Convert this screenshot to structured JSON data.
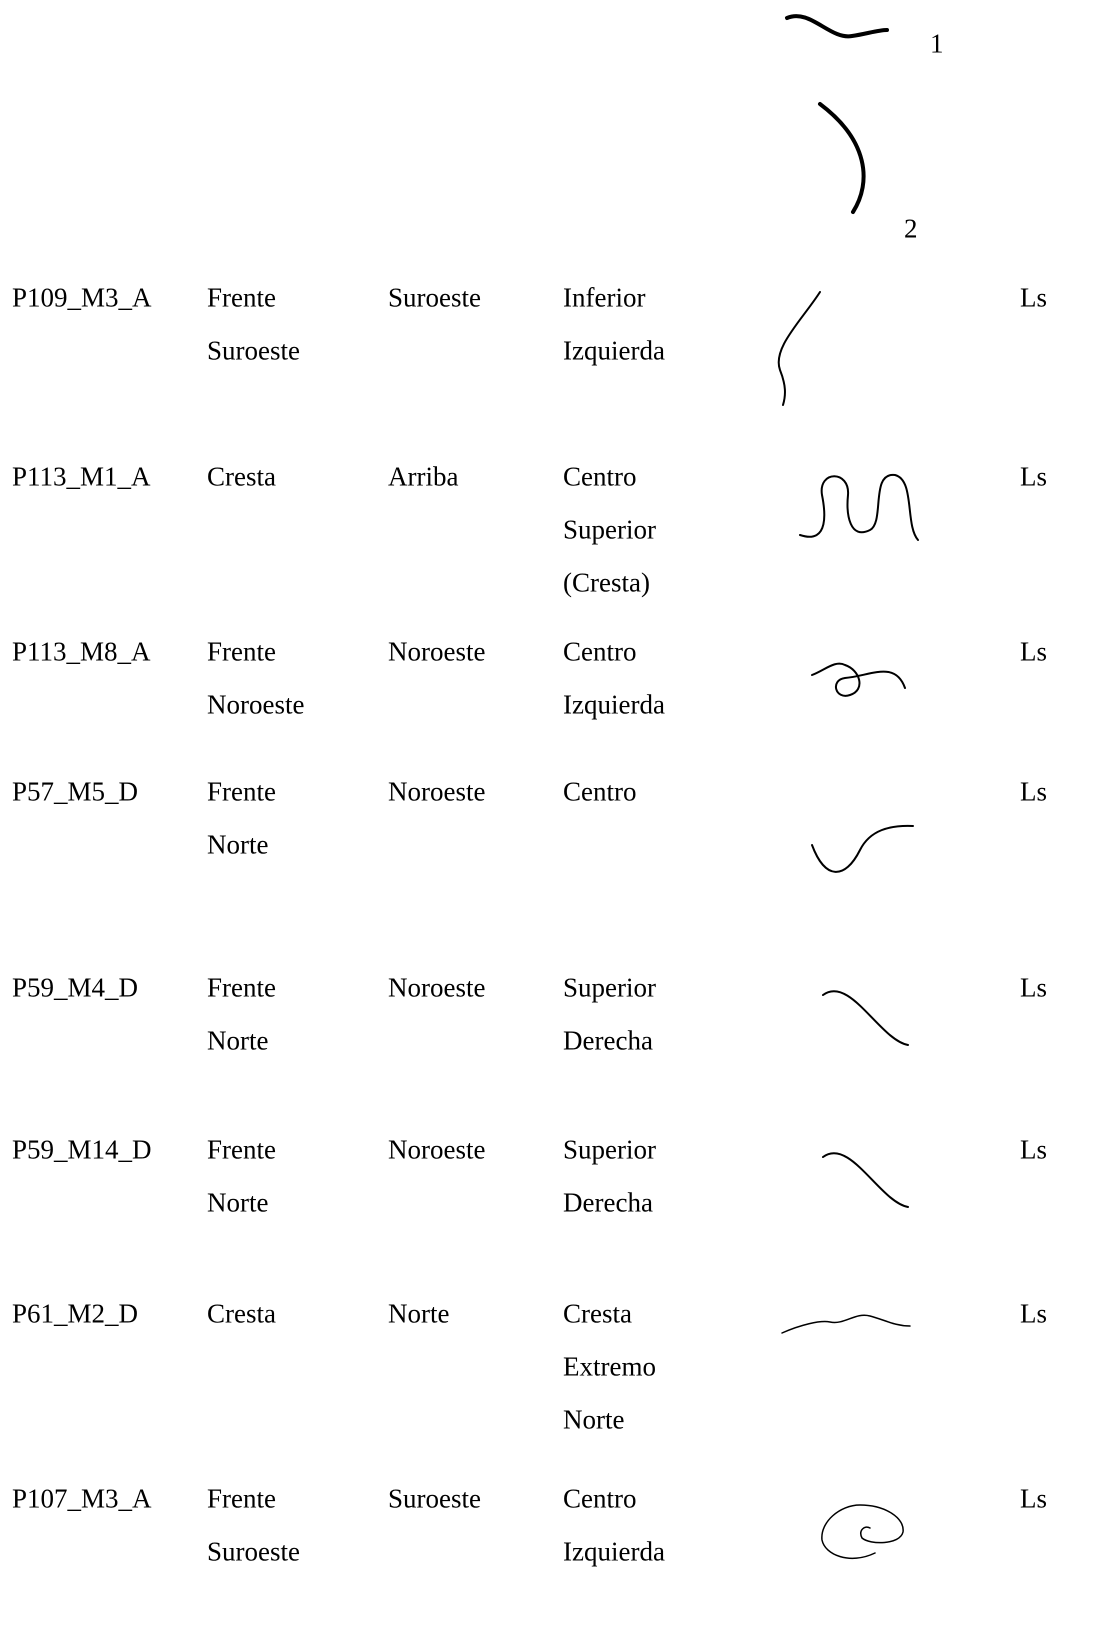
{
  "figure_labels": [
    "1",
    "2"
  ],
  "table": {
    "rows": [
      [
        "P109_M3_A",
        [
          "Frente",
          "Suroeste"
        ],
        [
          "Suroeste"
        ],
        [
          "Inferior",
          "Izquierda"
        ],
        "Ls"
      ],
      [
        "P113_M1_A",
        [
          "Cresta"
        ],
        [
          "Arriba"
        ],
        [
          "Centro",
          "Superior",
          "(Cresta)"
        ],
        "Ls"
      ],
      [
        "P113_M8_A",
        [
          "Frente",
          "Noroeste"
        ],
        [
          "Noroeste"
        ],
        [
          "Centro",
          "Izquierda"
        ],
        "Ls"
      ],
      [
        "P57_M5_D",
        [
          "Frente",
          "Norte"
        ],
        [
          "Noroeste"
        ],
        [
          "Centro"
        ],
        "Ls"
      ],
      [
        "P59_M4_D",
        [
          "Frente",
          "Norte"
        ],
        [
          "Noroeste"
        ],
        [
          "Superior",
          "Derecha"
        ],
        "Ls"
      ],
      [
        "P59_M14_D",
        [
          "Frente",
          "Norte"
        ],
        [
          "Noroeste"
        ],
        [
          "Superior",
          "Derecha"
        ],
        "Ls"
      ],
      [
        "P61_M2_D",
        [
          "Cresta"
        ],
        [
          "Norte"
        ],
        [
          "Cresta",
          "Extremo",
          "Norte"
        ],
        "Ls"
      ],
      [
        "P107_M3_A",
        [
          "Frente",
          "Suroeste"
        ],
        [
          "Suroeste"
        ],
        [
          "Centro",
          "Izquierda"
        ],
        "Ls"
      ]
    ]
  }
}
